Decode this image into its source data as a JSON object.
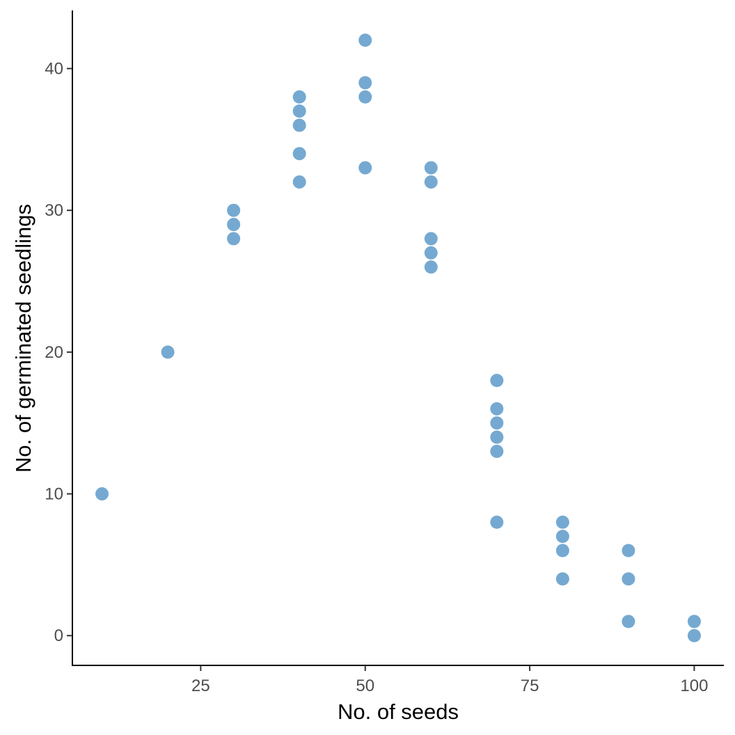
{
  "chart_data": {
    "type": "scatter",
    "title": "",
    "xlabel": "No. of seeds",
    "ylabel": "No. of germinated seedlings",
    "xlim": [
      5.5,
      104.5
    ],
    "ylim": [
      -2.1,
      44.1
    ],
    "xticks": [
      25,
      50,
      75,
      100
    ],
    "yticks": [
      0,
      10,
      20,
      30,
      40
    ],
    "grid": false,
    "legend": "none",
    "point_color": "#75A9D1",
    "points": [
      {
        "x": 10,
        "y": 10
      },
      {
        "x": 20,
        "y": 20
      },
      {
        "x": 30,
        "y": 28
      },
      {
        "x": 30,
        "y": 29
      },
      {
        "x": 30,
        "y": 30
      },
      {
        "x": 40,
        "y": 32
      },
      {
        "x": 40,
        "y": 34
      },
      {
        "x": 40,
        "y": 36
      },
      {
        "x": 40,
        "y": 37
      },
      {
        "x": 40,
        "y": 38
      },
      {
        "x": 50,
        "y": 33
      },
      {
        "x": 50,
        "y": 38
      },
      {
        "x": 50,
        "y": 39
      },
      {
        "x": 50,
        "y": 42
      },
      {
        "x": 60,
        "y": 26
      },
      {
        "x": 60,
        "y": 27
      },
      {
        "x": 60,
        "y": 28
      },
      {
        "x": 60,
        "y": 32
      },
      {
        "x": 60,
        "y": 33
      },
      {
        "x": 70,
        "y": 8
      },
      {
        "x": 70,
        "y": 13
      },
      {
        "x": 70,
        "y": 14
      },
      {
        "x": 70,
        "y": 15
      },
      {
        "x": 70,
        "y": 16
      },
      {
        "x": 70,
        "y": 18
      },
      {
        "x": 80,
        "y": 4
      },
      {
        "x": 80,
        "y": 6
      },
      {
        "x": 80,
        "y": 7
      },
      {
        "x": 80,
        "y": 8
      },
      {
        "x": 90,
        "y": 1
      },
      {
        "x": 90,
        "y": 4
      },
      {
        "x": 90,
        "y": 6
      },
      {
        "x": 100,
        "y": 0
      },
      {
        "x": 100,
        "y": 1
      }
    ]
  }
}
